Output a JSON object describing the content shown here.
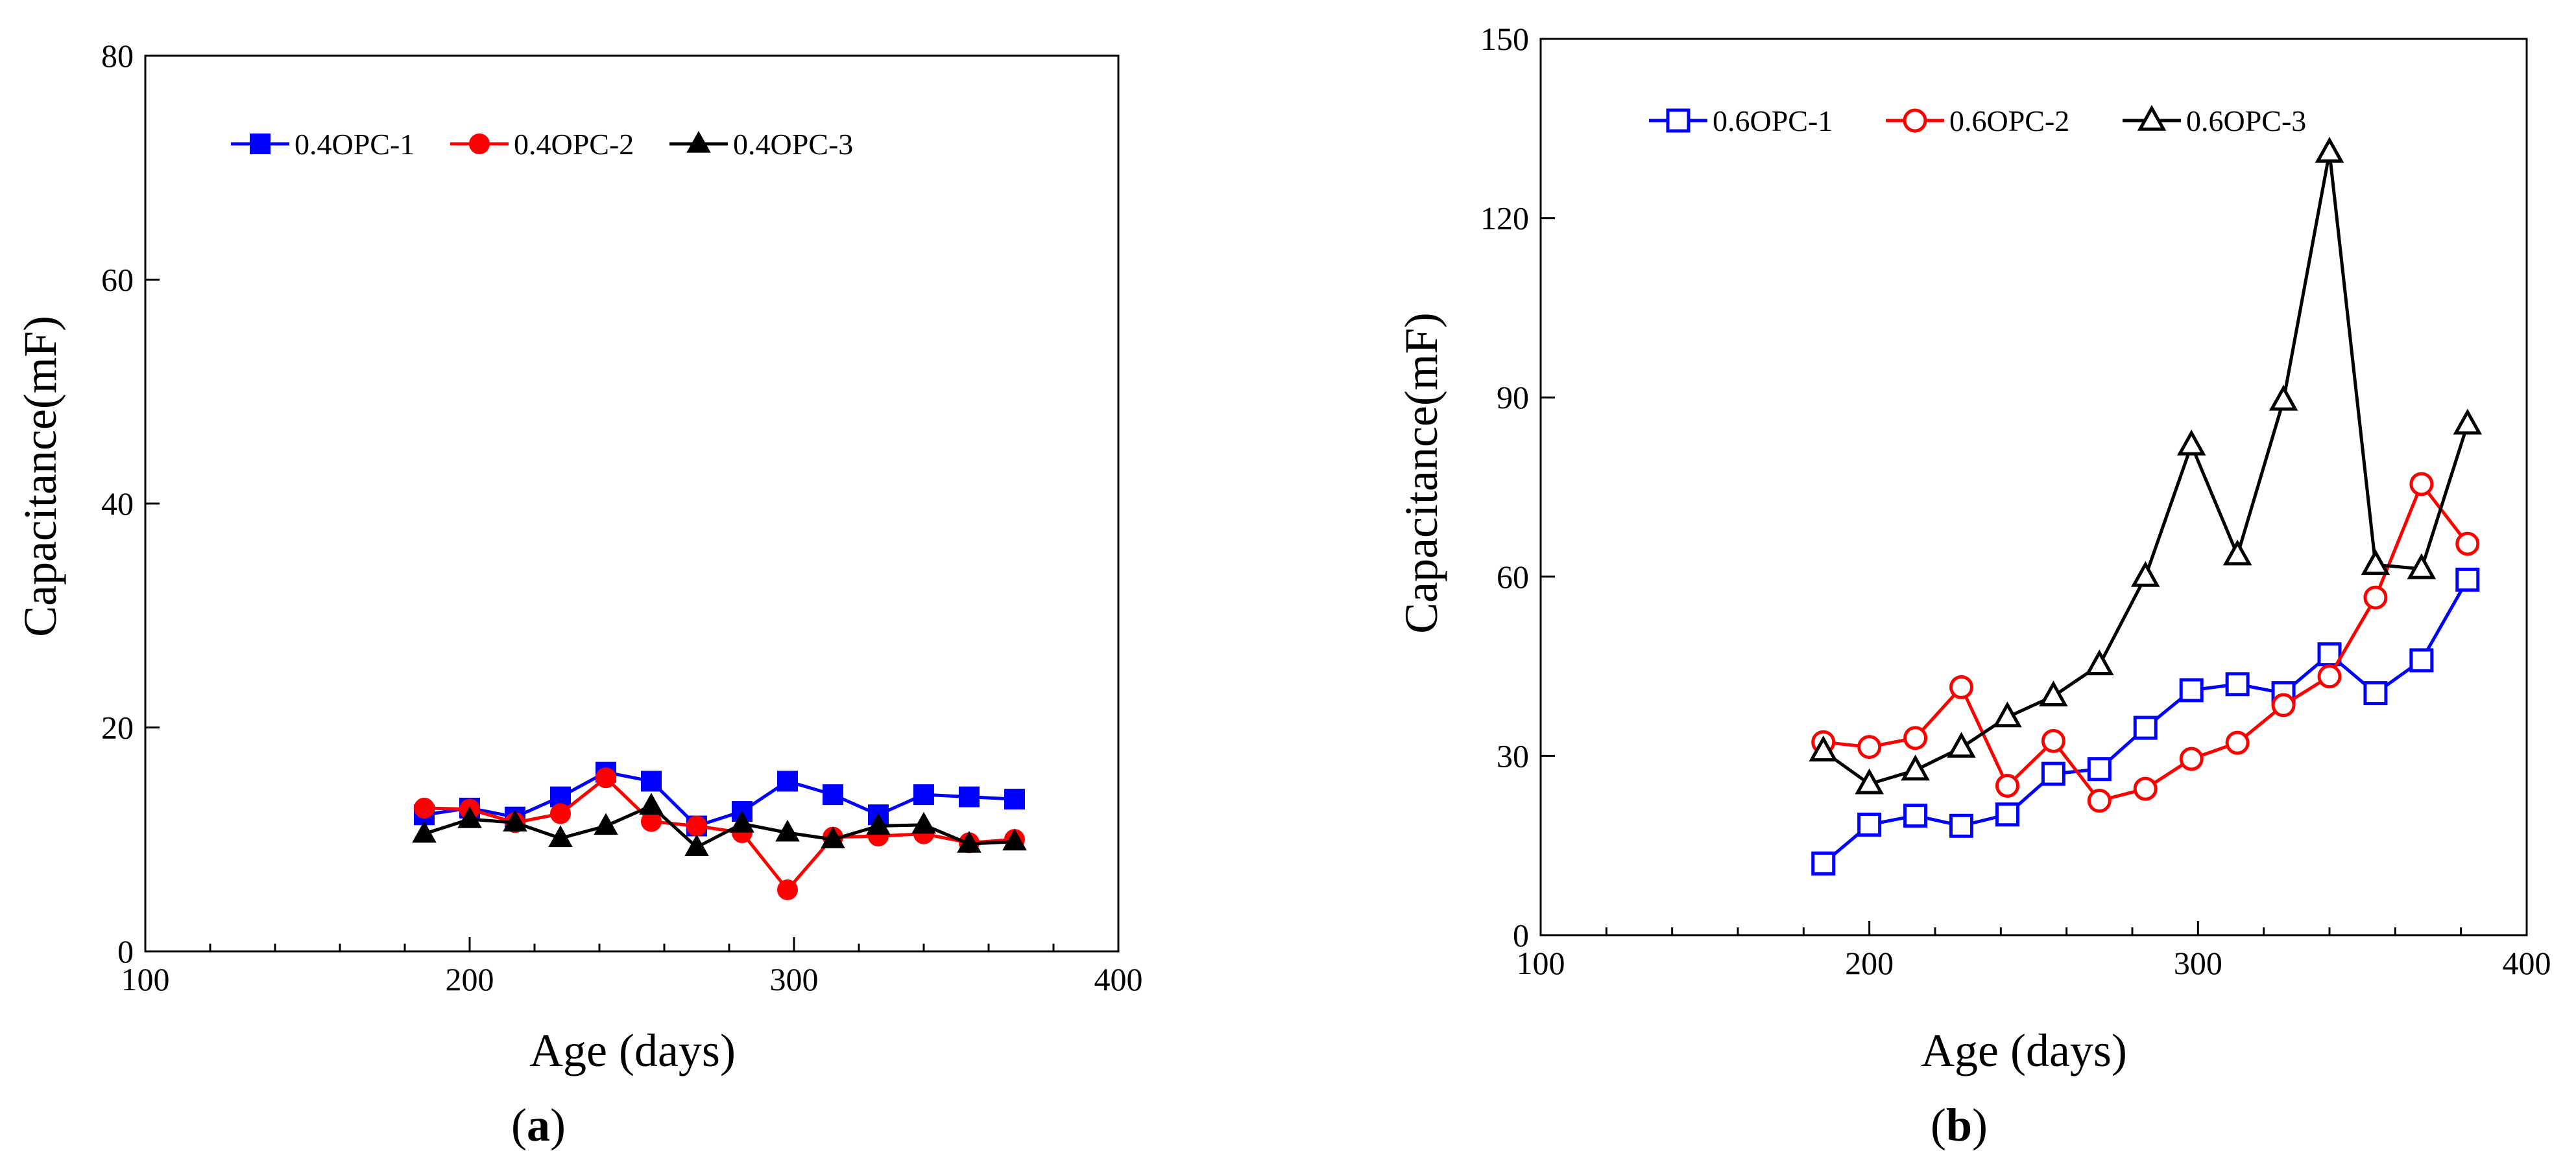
{
  "chart_data": [
    {
      "type": "line",
      "panel_label": "a",
      "xlabel": "Age (days)",
      "ylabel": "Capacitance(mF)",
      "xlim": [
        100,
        400
      ],
      "ylim": [
        0,
        80
      ],
      "x_ticks": [
        100,
        200,
        300,
        400
      ],
      "y_ticks": [
        0,
        20,
        40,
        60,
        80
      ],
      "x_minor_step": 20,
      "grid": false,
      "legend_position": "top",
      "series": [
        {
          "name": "0.4OPC-1",
          "color": "#0000ff",
          "marker": "square-filled",
          "x": [
            186,
            200,
            214,
            228,
            242,
            256,
            270,
            284,
            298,
            312,
            326,
            340,
            354,
            368
          ],
          "values": [
            12.2,
            12.8,
            12.0,
            13.8,
            16.0,
            15.2,
            11.2,
            12.5,
            15.2,
            14.0,
            12.2,
            14.0,
            13.8,
            13.6
          ]
        },
        {
          "name": "0.4OPC-2",
          "color": "#ff0000",
          "marker": "circle-filled",
          "x": [
            186,
            200,
            214,
            228,
            242,
            256,
            270,
            284,
            298,
            312,
            326,
            340,
            354,
            368
          ],
          "values": [
            12.8,
            12.7,
            11.5,
            12.3,
            15.5,
            11.6,
            11.2,
            10.6,
            5.5,
            10.2,
            10.3,
            10.5,
            9.7,
            10.0
          ]
        },
        {
          "name": "0.4OPC-3",
          "color": "#000000",
          "marker": "triangle-filled",
          "x": [
            186,
            200,
            214,
            228,
            242,
            256,
            270,
            284,
            298,
            312,
            326,
            340,
            354,
            368
          ],
          "values": [
            10.5,
            11.8,
            11.5,
            10.1,
            11.2,
            13.0,
            9.3,
            11.4,
            10.6,
            10.0,
            11.2,
            11.3,
            9.6,
            9.8
          ]
        }
      ]
    },
    {
      "type": "line",
      "panel_label": "b",
      "xlabel": "Age (days)",
      "ylabel": "Capacitance(mF)",
      "xlim": [
        100,
        400
      ],
      "ylim": [
        0,
        150
      ],
      "x_ticks": [
        100,
        200,
        300,
        400
      ],
      "y_ticks": [
        0,
        30,
        60,
        90,
        120,
        150
      ],
      "x_minor_step": 20,
      "grid": false,
      "legend_position": "top",
      "series": [
        {
          "name": "0.6OPC-1",
          "color": "#0000ff",
          "marker": "square-open",
          "x": [
            186,
            200,
            214,
            228,
            242,
            256,
            270,
            284,
            298,
            312,
            326,
            340,
            354,
            368,
            382
          ],
          "values": [
            12,
            18.5,
            20,
            18.3,
            20.2,
            27,
            27.8,
            34.7,
            41,
            42,
            40.5,
            47,
            40.5,
            46,
            59.5
          ]
        },
        {
          "name": "0.6OPC-2",
          "color": "#ff0000",
          "marker": "circle-open",
          "x": [
            186,
            200,
            214,
            228,
            242,
            256,
            270,
            284,
            298,
            312,
            326,
            340,
            354,
            368,
            382
          ],
          "values": [
            32.3,
            31.5,
            33,
            41.5,
            25,
            32.5,
            22.5,
            24.5,
            29.5,
            32.2,
            38.5,
            43.3,
            56.5,
            75.5,
            65.5
          ]
        },
        {
          "name": "0.6OPC-3",
          "color": "#000000",
          "marker": "triangle-open",
          "x": [
            186,
            200,
            214,
            228,
            242,
            256,
            270,
            284,
            298,
            312,
            326,
            340,
            354,
            368,
            382
          ],
          "values": [
            30.8,
            25.3,
            27.6,
            31.4,
            36.5,
            40,
            45.2,
            60,
            82,
            63.6,
            89.5,
            131,
            62,
            61.3,
            85.5
          ]
        }
      ]
    }
  ]
}
